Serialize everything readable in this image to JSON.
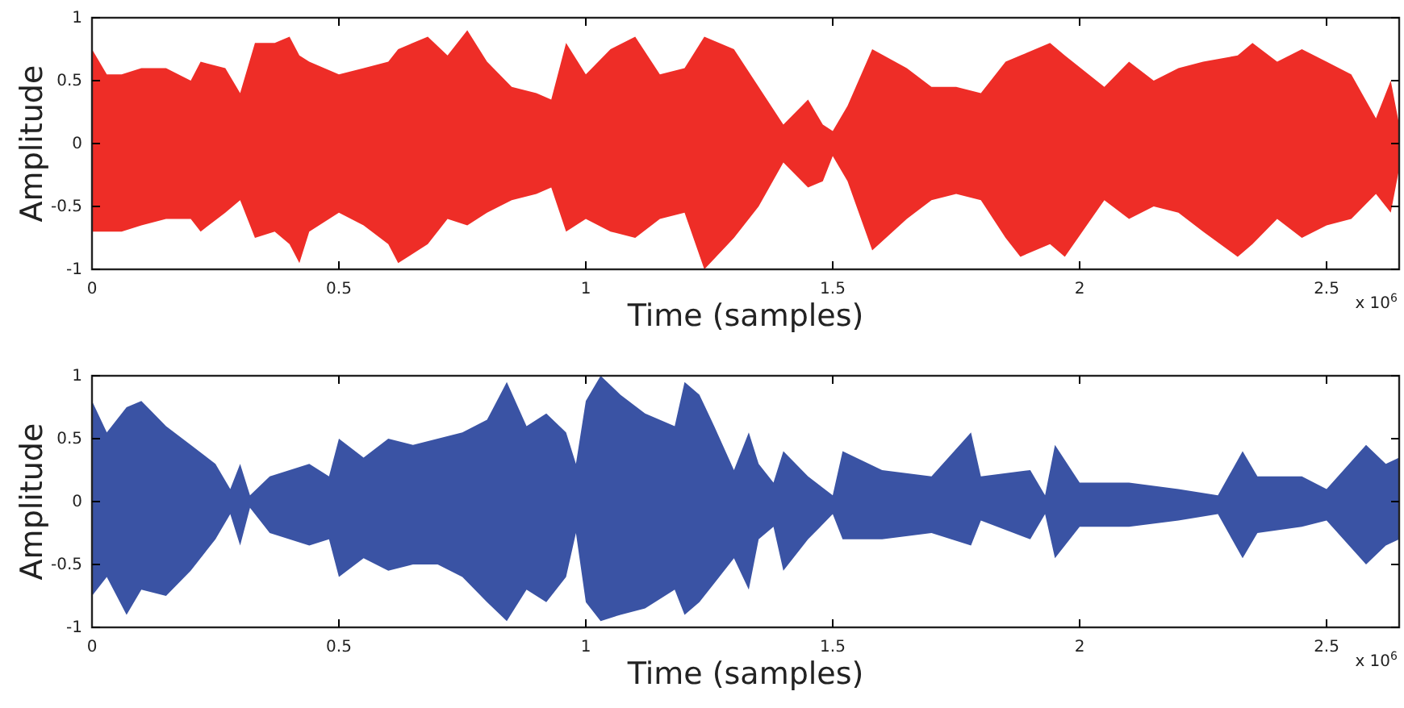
{
  "chart_data": [
    {
      "type": "area",
      "xlabel": "Time (samples)",
      "ylabel": "Amplitude",
      "annotations": [
        "x 10$^{6}$"
      ],
      "xlim": [
        0,
        2.647
      ],
      "ylim": [
        -1,
        1
      ],
      "xticks": [
        0,
        0.5,
        1,
        1.5,
        2,
        2.5
      ],
      "yticks": [
        -1,
        -0.5,
        0,
        0.5,
        1
      ],
      "x": [
        0,
        0.03,
        0.06,
        0.1,
        0.15,
        0.2,
        0.22,
        0.27,
        0.3,
        0.33,
        0.37,
        0.4,
        0.42,
        0.44,
        0.5,
        0.55,
        0.6,
        0.62,
        0.68,
        0.72,
        0.76,
        0.8,
        0.85,
        0.9,
        0.93,
        0.96,
        1.0,
        1.05,
        1.1,
        1.15,
        1.2,
        1.24,
        1.3,
        1.35,
        1.4,
        1.45,
        1.48,
        1.5,
        1.53,
        1.58,
        1.65,
        1.7,
        1.75,
        1.8,
        1.85,
        1.88,
        1.94,
        1.97,
        2.05,
        2.1,
        2.15,
        2.2,
        2.25,
        2.32,
        2.35,
        2.4,
        2.45,
        2.5,
        2.55,
        2.6,
        2.63,
        2.647
      ],
      "series": [
        {
          "color": "#ee2d27",
          "values": [
            0.75,
            0.55,
            0.55,
            0.6,
            0.6,
            0.5,
            0.65,
            0.6,
            0.4,
            0.8,
            0.8,
            0.85,
            0.7,
            0.65,
            0.55,
            0.6,
            0.65,
            0.75,
            0.85,
            0.7,
            0.9,
            0.65,
            0.45,
            0.4,
            0.35,
            0.8,
            0.55,
            0.75,
            0.85,
            0.55,
            0.6,
            0.85,
            0.75,
            0.45,
            0.15,
            0.35,
            0.15,
            0.1,
            0.3,
            0.75,
            0.6,
            0.45,
            0.45,
            0.4,
            0.65,
            0.7,
            0.8,
            0.7,
            0.45,
            0.65,
            0.5,
            0.6,
            0.65,
            0.7,
            0.8,
            0.65,
            0.75,
            0.65,
            0.55,
            0.2,
            0.5,
            0.15
          ]
        },
        {
          "color": "#ee2d27",
          "values": [
            -0.7,
            -0.7,
            -0.7,
            -0.65,
            -0.6,
            -0.6,
            -0.7,
            -0.55,
            -0.45,
            -0.75,
            -0.7,
            -0.8,
            -0.95,
            -0.7,
            -0.55,
            -0.65,
            -0.8,
            -0.95,
            -0.8,
            -0.6,
            -0.65,
            -0.55,
            -0.45,
            -0.4,
            -0.35,
            -0.7,
            -0.6,
            -0.7,
            -0.75,
            -0.6,
            -0.55,
            -1,
            -0.75,
            -0.5,
            -0.15,
            -0.35,
            -0.3,
            -0.1,
            -0.3,
            -0.85,
            -0.6,
            -0.45,
            -0.4,
            -0.45,
            -0.75,
            -0.9,
            -0.8,
            -0.9,
            -0.45,
            -0.6,
            -0.5,
            -0.55,
            -0.7,
            -0.9,
            -0.8,
            -0.6,
            -0.75,
            -0.65,
            -0.6,
            -0.4,
            -0.55,
            -0.2
          ]
        }
      ]
    },
    {
      "type": "area",
      "xlabel": "Time (samples)",
      "ylabel": "Amplitude",
      "annotations": [
        "x 10$^{6}$"
      ],
      "xlim": [
        0,
        2.647
      ],
      "ylim": [
        -1,
        1
      ],
      "xticks": [
        0,
        0.5,
        1,
        1.5,
        2,
        2.5
      ],
      "yticks": [
        -1,
        -0.5,
        0,
        0.5,
        1
      ],
      "x": [
        0,
        0.03,
        0.07,
        0.1,
        0.15,
        0.2,
        0.25,
        0.28,
        0.3,
        0.32,
        0.36,
        0.4,
        0.44,
        0.48,
        0.5,
        0.55,
        0.6,
        0.65,
        0.7,
        0.75,
        0.8,
        0.84,
        0.88,
        0.92,
        0.96,
        0.98,
        1.0,
        1.03,
        1.07,
        1.12,
        1.18,
        1.2,
        1.23,
        1.26,
        1.3,
        1.33,
        1.35,
        1.38,
        1.4,
        1.45,
        1.5,
        1.52,
        1.6,
        1.7,
        1.78,
        1.8,
        1.9,
        1.93,
        1.95,
        2.0,
        2.1,
        2.2,
        2.28,
        2.33,
        2.36,
        2.45,
        2.5,
        2.58,
        2.62,
        2.647
      ],
      "series": [
        {
          "color": "#3a53a4",
          "values": [
            0.8,
            0.55,
            0.75,
            0.8,
            0.6,
            0.45,
            0.3,
            0.1,
            0.3,
            0.05,
            0.2,
            0.25,
            0.3,
            0.2,
            0.5,
            0.35,
            0.5,
            0.45,
            0.5,
            0.55,
            0.65,
            0.95,
            0.6,
            0.7,
            0.55,
            0.3,
            0.8,
            1,
            0.85,
            0.7,
            0.6,
            0.95,
            0.85,
            0.6,
            0.25,
            0.55,
            0.3,
            0.15,
            0.4,
            0.2,
            0.05,
            0.4,
            0.25,
            0.2,
            0.55,
            0.2,
            0.25,
            0.05,
            0.45,
            0.15,
            0.15,
            0.1,
            0.05,
            0.4,
            0.2,
            0.2,
            0.1,
            0.45,
            0.3,
            0.35
          ]
        },
        {
          "color": "#3a53a4",
          "values": [
            -0.75,
            -0.6,
            -0.9,
            -0.7,
            -0.75,
            -0.55,
            -0.3,
            -0.1,
            -0.35,
            -0.05,
            -0.25,
            -0.3,
            -0.35,
            -0.3,
            -0.6,
            -0.45,
            -0.55,
            -0.5,
            -0.5,
            -0.6,
            -0.8,
            -0.95,
            -0.7,
            -0.8,
            -0.6,
            -0.25,
            -0.8,
            -0.95,
            -0.9,
            -0.85,
            -0.7,
            -0.9,
            -0.8,
            -0.65,
            -0.45,
            -0.7,
            -0.3,
            -0.2,
            -0.55,
            -0.3,
            -0.1,
            -0.3,
            -0.3,
            -0.25,
            -0.35,
            -0.15,
            -0.3,
            -0.1,
            -0.45,
            -0.2,
            -0.2,
            -0.15,
            -0.1,
            -0.45,
            -0.25,
            -0.2,
            -0.15,
            -0.5,
            -0.35,
            -0.3
          ]
        }
      ]
    }
  ]
}
